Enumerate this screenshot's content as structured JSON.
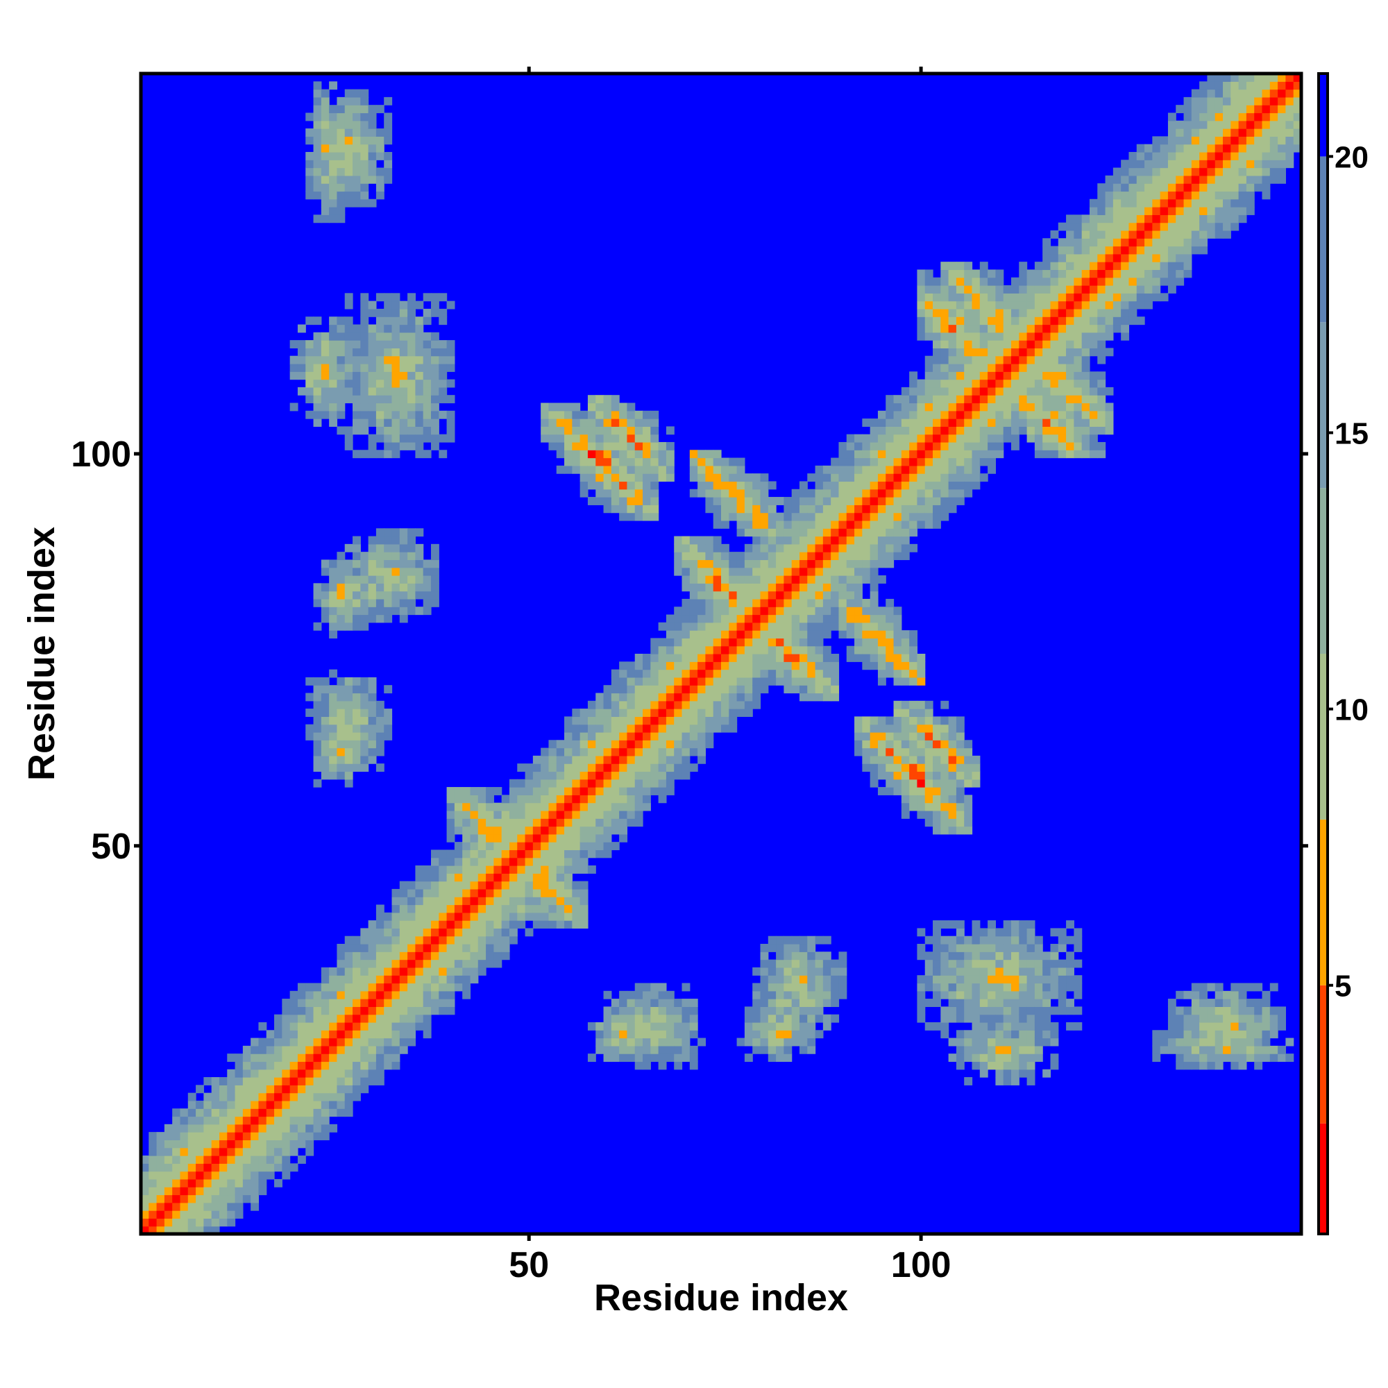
{
  "chart_data": {
    "type": "heatmap",
    "title": "",
    "xlabel": "Residue index",
    "ylabel": "Residue index",
    "n_residues": 148,
    "xlim": [
      0.5,
      148.5
    ],
    "ylim": [
      0.5,
      148.5
    ],
    "x_ticks": [
      50,
      100
    ],
    "y_ticks": [
      50,
      100
    ],
    "x_tick_labels": [
      "50",
      "100"
    ],
    "y_tick_labels": [
      "50",
      "100"
    ],
    "colorbar": {
      "range": [
        0.5,
        21.5
      ],
      "ticks": [
        5,
        10,
        15,
        20
      ],
      "tick_labels": [
        "5",
        "10",
        "15",
        "20"
      ],
      "bands": [
        {
          "from": 0.5,
          "to": 2.5,
          "color": "#ff0000"
        },
        {
          "from": 2.5,
          "to": 5.0,
          "color": "#ff4500"
        },
        {
          "from": 5.0,
          "to": 8.0,
          "color": "#ffa500"
        },
        {
          "from": 8.0,
          "to": 11.0,
          "color": "#a8c08c"
        },
        {
          "from": 11.0,
          "to": 14.0,
          "color": "#8fb09e"
        },
        {
          "from": 14.0,
          "to": 17.0,
          "color": "#7a9cb0"
        },
        {
          "from": 17.0,
          "to": 20.0,
          "color": "#5d82b5"
        },
        {
          "from": 20.0,
          "to": 21.5,
          "color": "#0000ff"
        }
      ]
    },
    "diagonal": {
      "band_half_width": 4,
      "core_distance": 1.0
    },
    "cutoff": 21.5,
    "regions": [
      {
        "r1": [
          5,
          150
        ],
        "r2": [
          5,
          150
        ],
        "kind": "diagonal"
      },
      {
        "r1": [
          52,
          66
        ],
        "r2": [
          92,
          106
        ],
        "kind": "sheet-antiparallel"
      },
      {
        "r1": [
          69,
          80
        ],
        "r2": [
          78,
          89
        ],
        "kind": "sheet-antiparallel"
      },
      {
        "r1": [
          71,
          83
        ],
        "r2": [
          90,
          100
        ],
        "kind": "sheet-antiparallel"
      },
      {
        "r1": [
          97,
          107
        ],
        "r2": [
          58,
          68
        ],
        "kind": "sheet-antiparallel"
      },
      {
        "r1": [
          103,
          113
        ],
        "r2": [
          114,
          124
        ],
        "kind": "sheet-antiparallel"
      },
      {
        "r1": [
          110,
          123
        ],
        "r2": [
          100,
          110
        ],
        "kind": "sheet-antiparallel"
      },
      {
        "r1": [
          40,
          56
        ],
        "r2": [
          43,
          57
        ],
        "kind": "sheet-antiparallel"
      },
      {
        "r1": [
          22,
          30
        ],
        "r2": [
          58,
          66
        ],
        "kind": "cluster"
      },
      {
        "r1": [
          23,
          30
        ],
        "r2": [
          77,
          87
        ],
        "kind": "cluster"
      },
      {
        "r1": [
          20,
          28
        ],
        "r2": [
          104,
          117
        ],
        "kind": "cluster"
      },
      {
        "r1": [
          22,
          27
        ],
        "r2": [
          130,
          147
        ],
        "kind": "cluster"
      },
      {
        "r1": [
          60,
          72
        ],
        "r2": [
          22,
          32
        ],
        "kind": "cluster"
      },
      {
        "r1": [
          79,
          90
        ],
        "r2": [
          26,
          38
        ],
        "kind": "cluster"
      },
      {
        "r1": [
          100,
          120
        ],
        "r2": [
          26,
          40
        ],
        "kind": "cluster"
      },
      {
        "r1": [
          132,
          146
        ],
        "r2": [
          22,
          32
        ],
        "kind": "cluster"
      }
    ]
  }
}
